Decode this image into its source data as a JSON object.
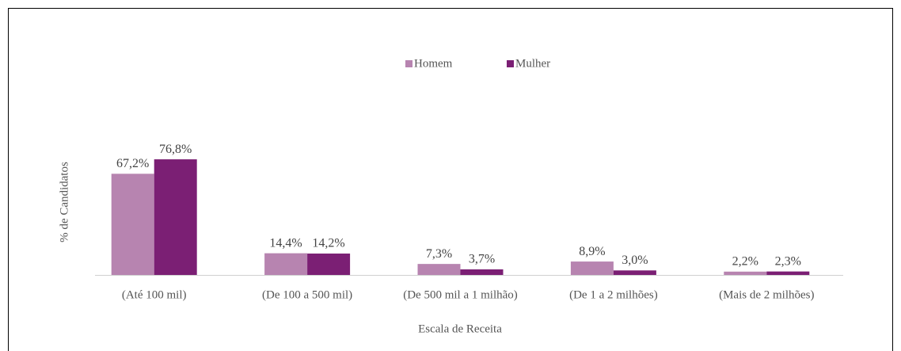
{
  "chart_data": {
    "type": "bar",
    "xlabel": "Escala de Receita",
    "ylabel": "% de Candidatos",
    "categories": [
      "(Até 100 mil)",
      "(De 100 a 500 mil)",
      "(De 500 mil a 1 milhão)",
      "(De 1 a 2 milhões)",
      "(Mais de 2 milhões)"
    ],
    "series": [
      {
        "name": "Homem",
        "color": "#b784b0",
        "values": [
          67.2,
          14.4,
          7.3,
          8.9,
          2.2
        ],
        "value_labels": [
          "67,2%",
          "14,4%",
          "7,3%",
          "8,9%",
          "2,2%"
        ]
      },
      {
        "name": "Mulher",
        "color": "#7b1f74",
        "values": [
          76.8,
          14.2,
          3.7,
          3.0,
          2.3
        ],
        "value_labels": [
          "76,8%",
          "14,2%",
          "3,7%",
          "3,0%",
          "2,3%"
        ]
      }
    ],
    "legend": "top"
  }
}
